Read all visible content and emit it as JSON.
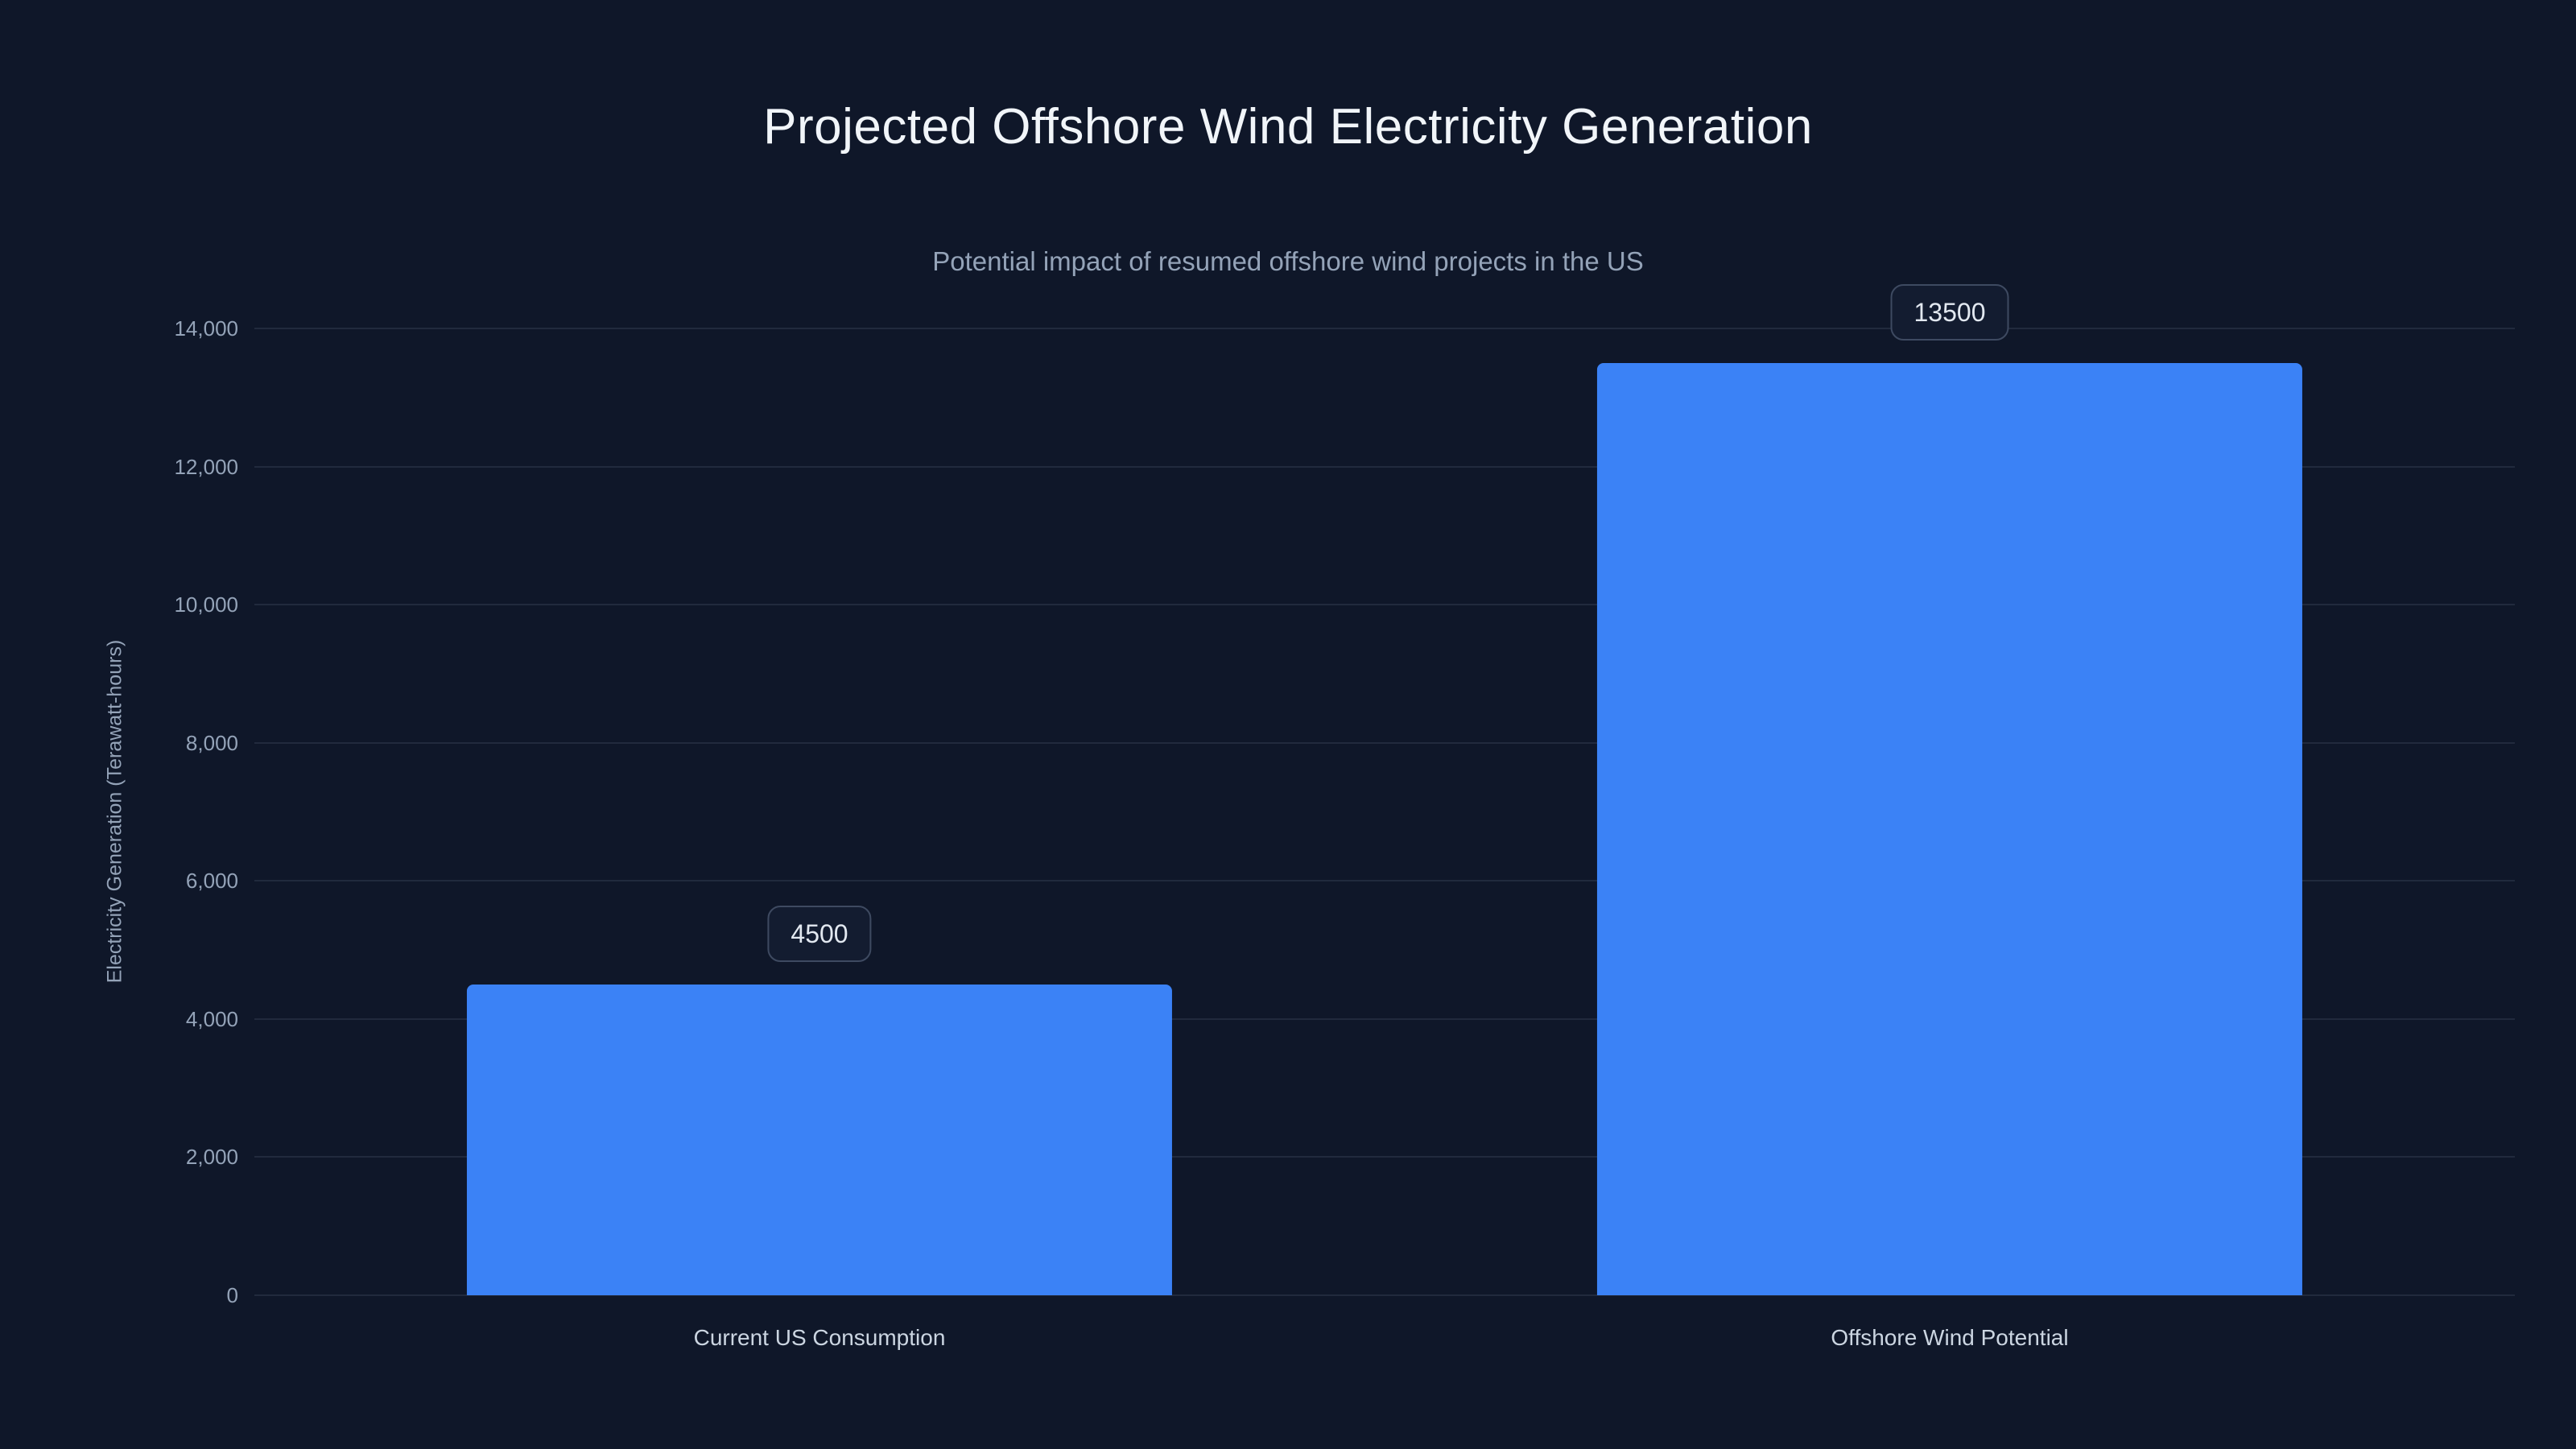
{
  "chart_data": {
    "type": "bar",
    "title": "Projected Offshore Wind Electricity Generation",
    "subtitle": "Potential impact of resumed offshore wind projects in the US",
    "ylabel": "Electricity Generation (Terawatt-hours)",
    "xlabel": "",
    "categories": [
      "Current US Consumption",
      "Offshore Wind Potential"
    ],
    "values": [
      4500,
      13500
    ],
    "value_labels": [
      "4500",
      "13500"
    ],
    "ylim": [
      0,
      14000
    ],
    "ytick_step": 2000,
    "ytick_labels": [
      "0",
      "2,000",
      "4,000",
      "6,000",
      "8,000",
      "10,000",
      "12,000",
      "14,000"
    ],
    "grid": true,
    "legend": false,
    "colors": {
      "background": "#0f1729",
      "bar": "#3b82f6",
      "grid": "rgba(148,163,184,0.14)",
      "tick_text": "#94a3b8",
      "category_text": "#cbd5e1",
      "title_text": "#f1f5f9",
      "subtitle_text": "#94a3b8",
      "label_box_bg": "#131c30",
      "label_box_border": "#3e4a61",
      "label_box_text": "#e2e8f0"
    }
  }
}
